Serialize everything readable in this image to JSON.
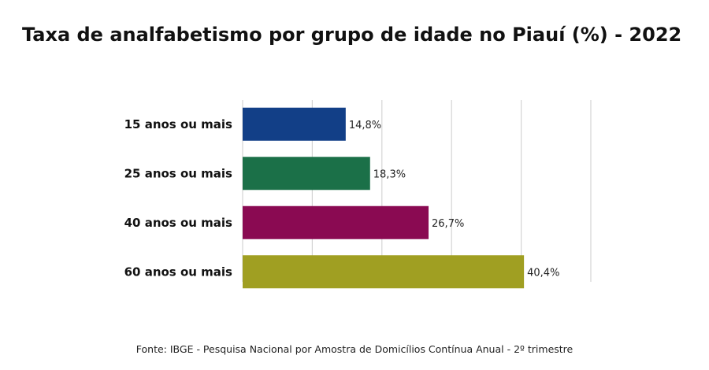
{
  "chart_data": {
    "type": "bar",
    "orientation": "horizontal",
    "title": "Taxa de analfabetismo por grupo de idade no Piauí (%) - 2022",
    "categories": [
      "15 anos ou mais",
      "25 anos ou mais",
      "40 anos ou mais",
      "60 anos ou mais"
    ],
    "values": [
      14.8,
      18.3,
      26.7,
      40.4
    ],
    "value_labels": [
      "14,8%",
      "18,3%",
      "26,7%",
      "40,4%"
    ],
    "colors": [
      "#123f87",
      "#1b7048",
      "#8a0a52",
      "#a09f22"
    ],
    "xlim": [
      0,
      50
    ],
    "grid": true,
    "source": "Fonte: IBGE -  Pesquisa Nacional por Amostra de Domicílios Contínua Anual - 2º trimestre"
  }
}
